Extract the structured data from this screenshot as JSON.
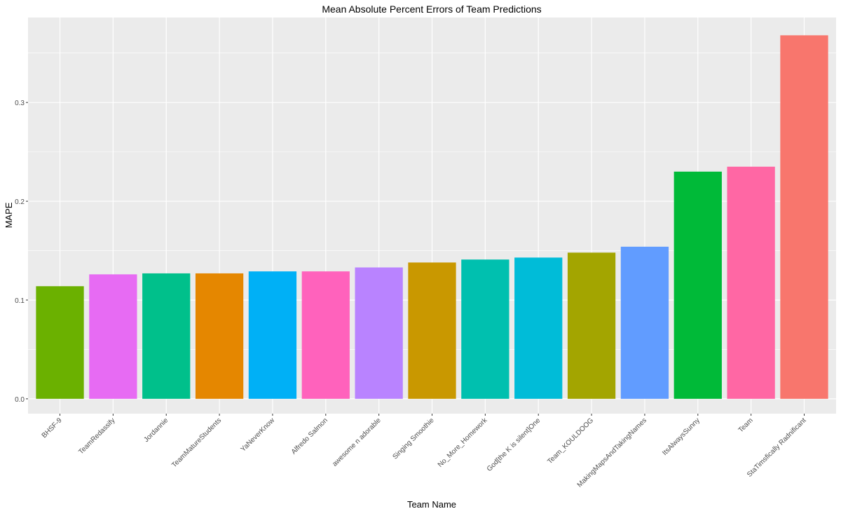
{
  "chart_data": {
    "type": "bar",
    "title": "Mean Absolute Percent Errors of Team Predictions",
    "xlabel": "Team Name",
    "ylabel": "MAPE",
    "ylim": [
      -0.015,
      0.386
    ],
    "yticks": [
      0.0,
      0.1,
      0.2,
      0.3
    ],
    "ytick_labels": [
      "0.0",
      "0.1",
      "0.2",
      "0.3"
    ],
    "grid": true,
    "legend": "none",
    "categories": [
      "BHSF-9",
      "TeamRedassify",
      "Jordannie",
      "TeamMatureStudents",
      "YaNeverKnow",
      "Alfredo Salmon",
      "awesome n adorable",
      "Singing Smoothie",
      "No_More_Homework",
      "God[the K is silent]One",
      "Team_KOULDOOG",
      "MakingMapsAndTakingNames",
      "ItsAlwaysSunny",
      "Team",
      "StaTimsfically Radnificant"
    ],
    "values": [
      0.114,
      0.126,
      0.127,
      0.127,
      0.129,
      0.129,
      0.133,
      0.138,
      0.141,
      0.143,
      0.148,
      0.154,
      0.23,
      0.235,
      0.368
    ],
    "colors": [
      "#6BB100",
      "#E76BF3",
      "#00C08B",
      "#E58700",
      "#00B0F6",
      "#FF62BC",
      "#B983FF",
      "#C99800",
      "#00C0AF",
      "#00BCD8",
      "#A3A500",
      "#619CFF",
      "#00BA38",
      "#FF67A4",
      "#F8766D"
    ]
  }
}
